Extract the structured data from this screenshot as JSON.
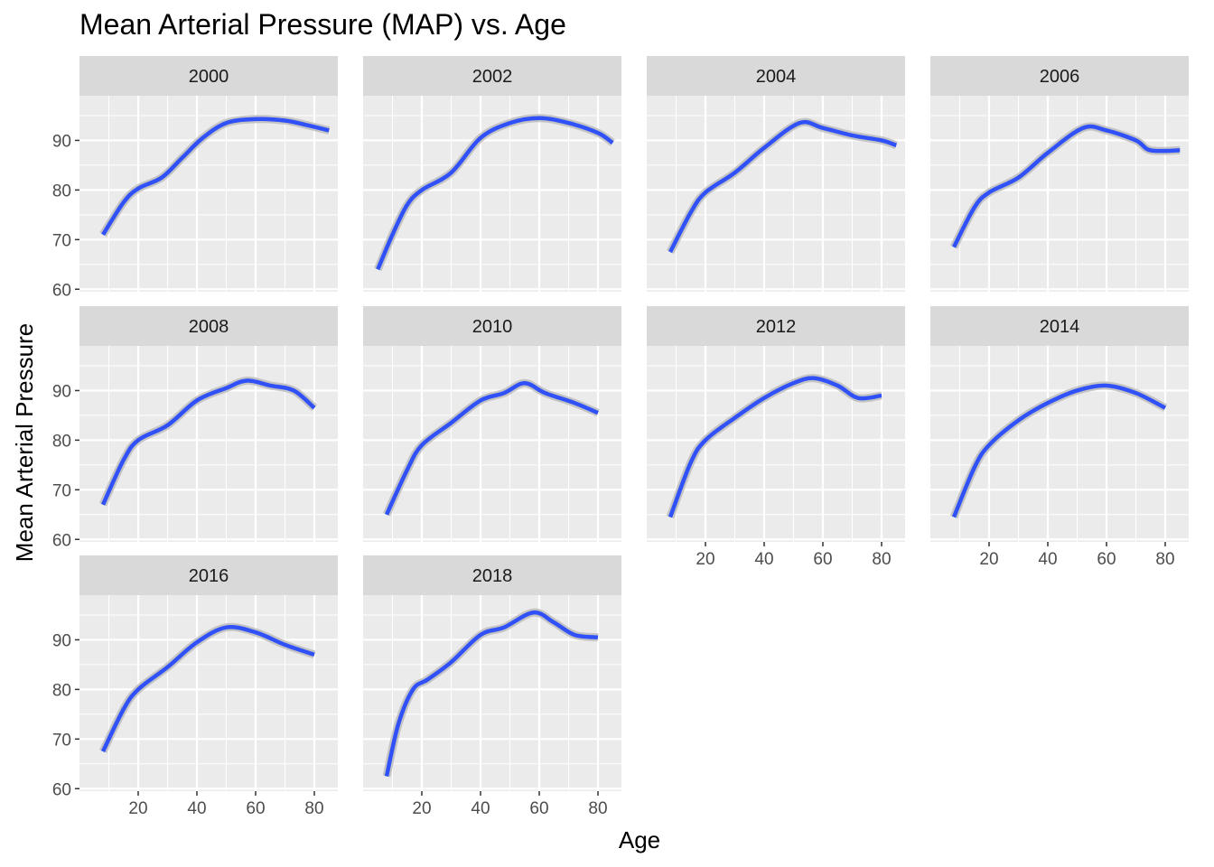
{
  "chart_data": {
    "type": "line",
    "title": "Mean Arterial Pressure (MAP) vs. Age",
    "xlabel": "Age",
    "ylabel": "Mean Arterial Pressure",
    "xlim": [
      0,
      88
    ],
    "ylim": [
      59.5,
      99
    ],
    "x_ticks": [
      20,
      40,
      60,
      80
    ],
    "y_ticks": [
      60,
      70,
      80,
      90
    ],
    "grid": true,
    "colors": {
      "line": "#3050F8",
      "band": "#BDBDBD",
      "panel_bg": "#EBEBEB",
      "strip_bg": "#D9D9D9",
      "grid": "#FFFFFF"
    },
    "panels": [
      {
        "label": "2000",
        "x": [
          8,
          15,
          20,
          28,
          35,
          42,
          50,
          60,
          70,
          78,
          85
        ],
        "y": [
          71,
          77.5,
          80.3,
          82.5,
          86.5,
          90.5,
          93.5,
          94.3,
          94,
          93,
          92
        ]
      },
      {
        "label": "2002",
        "x": [
          5,
          10,
          15,
          20,
          30,
          40,
          50,
          60,
          70,
          80,
          85
        ],
        "y": [
          64,
          71,
          77,
          80,
          83.5,
          90.5,
          93.5,
          94.5,
          93.5,
          91.5,
          89.5
        ]
      },
      {
        "label": "2004",
        "x": [
          8,
          15,
          20,
          30,
          40,
          52,
          60,
          70,
          80,
          85
        ],
        "y": [
          67.5,
          75.5,
          79.5,
          83.5,
          88.5,
          93.5,
          92.5,
          91,
          90,
          89
        ]
      },
      {
        "label": "2006",
        "x": [
          8,
          15,
          20,
          30,
          40,
          52,
          60,
          70,
          75,
          85
        ],
        "y": [
          68.5,
          76.5,
          79.5,
          82.5,
          87.5,
          92.5,
          92,
          90,
          88,
          88
        ]
      },
      {
        "label": "2008",
        "x": [
          8,
          15,
          20,
          30,
          40,
          50,
          57,
          65,
          73,
          80
        ],
        "y": [
          67,
          76,
          80,
          83,
          88,
          90.5,
          92,
          91,
          90,
          86.5
        ]
      },
      {
        "label": "2010",
        "x": [
          8,
          15,
          20,
          30,
          40,
          48,
          55,
          62,
          72,
          80
        ],
        "y": [
          65,
          74,
          79,
          83.5,
          88,
          89.5,
          91.5,
          89.5,
          87.5,
          85.5
        ]
      },
      {
        "label": "2012",
        "x": [
          8,
          15,
          20,
          30,
          40,
          50,
          57,
          65,
          72,
          80
        ],
        "y": [
          64.5,
          75.5,
          80,
          84.5,
          88.5,
          91.5,
          92.5,
          91,
          88.5,
          89
        ]
      },
      {
        "label": "2014",
        "x": [
          8,
          15,
          20,
          30,
          40,
          50,
          60,
          70,
          80
        ],
        "y": [
          64.5,
          74.5,
          79,
          84,
          87.5,
          90,
          91,
          89.5,
          86.5
        ]
      },
      {
        "label": "2016",
        "x": [
          8,
          15,
          20,
          30,
          40,
          50,
          60,
          70,
          80
        ],
        "y": [
          67.5,
          76,
          80,
          84.5,
          89.5,
          92.5,
          91.5,
          89,
          87
        ]
      },
      {
        "label": "2018",
        "x": [
          8,
          12,
          17,
          22,
          30,
          40,
          48,
          58,
          65,
          72,
          80
        ],
        "y": [
          62.5,
          73,
          80,
          82,
          85.5,
          91,
          92.5,
          95.5,
          93.5,
          91,
          90.5
        ]
      }
    ]
  }
}
